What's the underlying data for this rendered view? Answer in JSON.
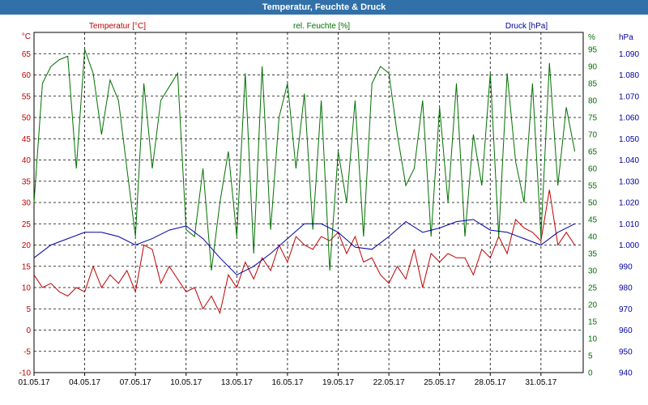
{
  "window": {
    "title": "Temperatur, Feuchte & Druck"
  },
  "chart_data": {
    "type": "line",
    "title": "Temperatur, Feuchte & Druck",
    "grid": true,
    "x_tick_labels": [
      "01.05.17",
      "04.05.17",
      "07.05.17",
      "10.05.17",
      "13.05.17",
      "16.05.17",
      "19.05.17",
      "22.05.17",
      "25.05.17",
      "28.05.17",
      "31.05.17"
    ],
    "x_range_days": [
      0,
      32.5
    ],
    "axes": {
      "temperature": {
        "label": "Temperatur [°C]",
        "unit_label": "°C",
        "color": "#c00000",
        "range": [
          -10,
          70
        ],
        "ticks": [
          "-10",
          "-5",
          "0",
          "5",
          "10",
          "15",
          "20",
          "25",
          "30",
          "35",
          "40",
          "45",
          "50",
          "55",
          "60",
          "65"
        ]
      },
      "humidity": {
        "label": "rel. Feuchte [%]",
        "unit_label": "%",
        "color": "#007000",
        "range": [
          0,
          100
        ],
        "ticks": [
          "0",
          "5",
          "10",
          "15",
          "20",
          "25",
          "30",
          "35",
          "40",
          "45",
          "50",
          "55",
          "60",
          "65",
          "70",
          "75",
          "80",
          "85",
          "90",
          "95"
        ]
      },
      "pressure": {
        "label": "Druck [hPa]",
        "unit_label": "hPa",
        "color": "#0000a0",
        "range": [
          940,
          1100
        ],
        "ticks": [
          "940",
          "950",
          "960",
          "970",
          "980",
          "990",
          "1.000",
          "1.010",
          "1.020",
          "1.030",
          "1.040",
          "1.050",
          "1.060",
          "1.070",
          "1.080",
          "1.090"
        ]
      }
    },
    "series": [
      {
        "name": "Temperatur [°C]",
        "axis": "temperature",
        "color": "#c00000",
        "x": [
          0,
          0.5,
          1,
          1.5,
          2,
          2.5,
          3,
          3.5,
          4,
          4.5,
          5,
          5.5,
          6,
          6.5,
          7,
          7.5,
          8,
          8.5,
          9,
          9.5,
          10,
          10.5,
          11,
          11.5,
          12,
          12.5,
          13,
          13.5,
          14,
          14.5,
          15,
          15.5,
          16,
          16.5,
          17,
          17.5,
          18,
          18.5,
          19,
          19.5,
          20,
          20.5,
          21,
          21.5,
          22,
          22.5,
          23,
          23.5,
          24,
          24.5,
          25,
          25.5,
          26,
          26.5,
          27,
          27.5,
          28,
          28.5,
          29,
          29.5,
          30,
          30.5,
          31,
          31.5,
          32
        ],
        "y": [
          13,
          10,
          11,
          9,
          8,
          10,
          9,
          15,
          10,
          13,
          11,
          14,
          9,
          20,
          19,
          11,
          15,
          12,
          9,
          10,
          5,
          8,
          4,
          13,
          10,
          16,
          12,
          17,
          14,
          20,
          16,
          22,
          20,
          19,
          22,
          21,
          23,
          18,
          22,
          16,
          17,
          13,
          11,
          15,
          12,
          19,
          10,
          18,
          16,
          18,
          17,
          17,
          13,
          19,
          17,
          22,
          18,
          26,
          24,
          23,
          21,
          33,
          20,
          23,
          20
        ]
      },
      {
        "name": "rel. Feuchte [%]",
        "axis": "humidity",
        "color": "#007000",
        "x": [
          0,
          0.5,
          1,
          1.5,
          2,
          2.5,
          3,
          3.5,
          4,
          4.5,
          5,
          5.5,
          6,
          6.5,
          7,
          7.5,
          8,
          8.5,
          9,
          9.5,
          10,
          10.5,
          11,
          11.5,
          12,
          12.5,
          13,
          13.5,
          14,
          14.5,
          15,
          15.5,
          16,
          16.5,
          17,
          17.5,
          18,
          18.5,
          19,
          19.5,
          20,
          20.5,
          21,
          21.5,
          22,
          22.5,
          23,
          23.5,
          24,
          24.5,
          25,
          25.5,
          26,
          26.5,
          27,
          27.5,
          28,
          28.5,
          29,
          29.5,
          30,
          30.5,
          31,
          31.5,
          32
        ],
        "y": [
          50,
          85,
          90,
          92,
          93,
          60,
          95,
          88,
          70,
          86,
          80,
          60,
          40,
          85,
          60,
          80,
          84,
          88,
          42,
          40,
          60,
          30,
          50,
          65,
          40,
          88,
          35,
          90,
          42,
          75,
          85,
          60,
          82,
          42,
          80,
          30,
          65,
          50,
          80,
          40,
          85,
          90,
          88,
          70,
          55,
          60,
          80,
          40,
          78,
          50,
          85,
          40,
          70,
          55,
          88,
          40,
          88,
          62,
          50,
          85,
          40,
          91,
          55,
          78,
          65
        ]
      },
      {
        "name": "Druck [hPa]",
        "axis": "pressure",
        "color": "#0000a0",
        "x": [
          0,
          1,
          2,
          3,
          4,
          5,
          6,
          7,
          8,
          9,
          10,
          11,
          12,
          13,
          14,
          15,
          16,
          17,
          18,
          19,
          20,
          21,
          22,
          23,
          24,
          25,
          26,
          27,
          28,
          29,
          30,
          31,
          32
        ],
        "y": [
          994,
          1000,
          1003,
          1006,
          1006,
          1004,
          1000,
          1003,
          1007,
          1009,
          1003,
          994,
          986,
          990,
          996,
          1003,
          1010,
          1010,
          1006,
          999,
          998,
          1004,
          1011,
          1006,
          1008,
          1011,
          1012,
          1007,
          1006,
          1003,
          1000,
          1006,
          1010
        ]
      }
    ]
  }
}
